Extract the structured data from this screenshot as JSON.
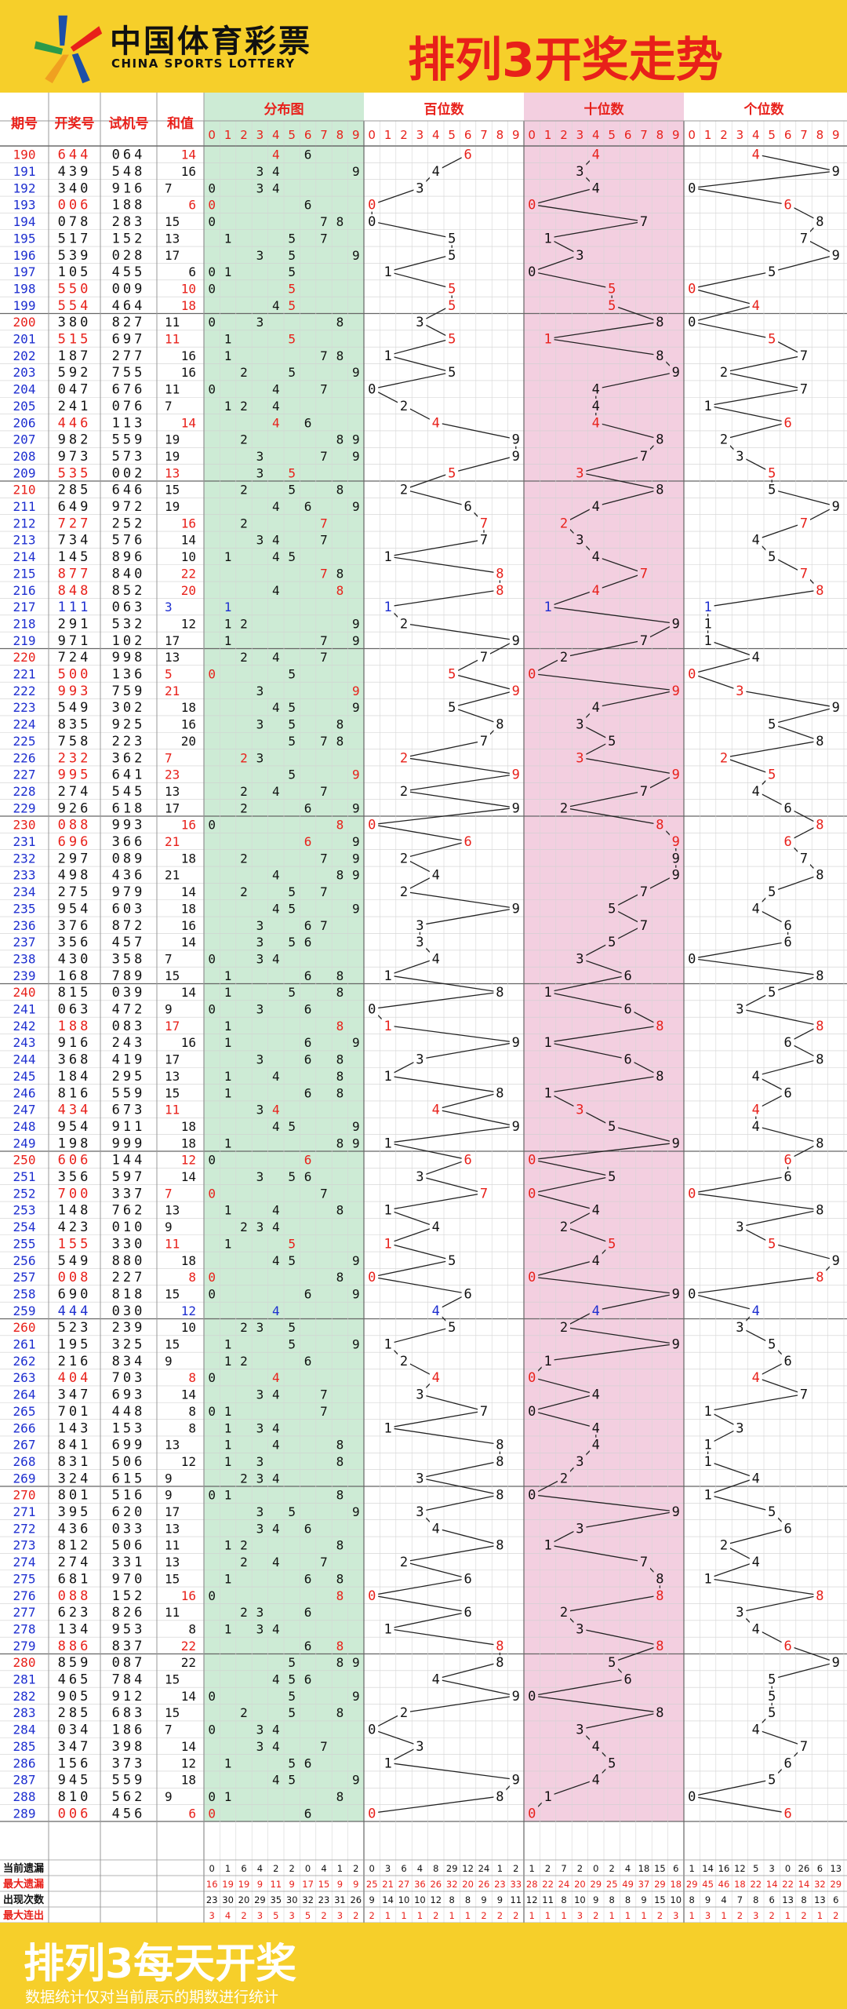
{
  "header": {
    "brand_cn": "中国体育彩票",
    "brand_en": "CHINA SPORTS LOTTERY",
    "title": "排列3开奖走势"
  },
  "footer": {
    "title": "排列3每天开奖",
    "note": "数据统计仅对当前展示的期数进行统计"
  },
  "colors": {
    "accent_red": "#e8201a",
    "blue": "#1e2fd0",
    "brand_yellow": "#f6cf2a",
    "dist_bg": "#cdebd5",
    "ten_bg": "#f3cfe0",
    "line": "#222222"
  },
  "chart_data": {
    "type": "table",
    "columns": [
      "期号",
      "开奖号",
      "试机号",
      "和值",
      "分布图",
      "百位数",
      "十位数",
      "个位数"
    ],
    "digits": [
      "0",
      "1",
      "2",
      "3",
      "4",
      "5",
      "6",
      "7",
      "8",
      "9"
    ],
    "rows": [
      [
        "190",
        "644",
        "064",
        14,
        "",
        ""
      ],
      [
        "191",
        "439",
        "548",
        16,
        "",
        ""
      ],
      [
        "192",
        "340",
        "916",
        7,
        "",
        ""
      ],
      [
        "193",
        "006",
        "188",
        6,
        "",
        ""
      ],
      [
        "194",
        "078",
        "283",
        15,
        "",
        ""
      ],
      [
        "195",
        "517",
        "152",
        13,
        "",
        ""
      ],
      [
        "196",
        "539",
        "028",
        17,
        "",
        ""
      ],
      [
        "197",
        "105",
        "455",
        6,
        "",
        ""
      ],
      [
        "198",
        "550",
        "009",
        10,
        "",
        ""
      ],
      [
        "199",
        "554",
        "464",
        18,
        "",
        ""
      ],
      [
        "200",
        "380",
        "827",
        11,
        "",
        ""
      ],
      [
        "201",
        "515",
        "697",
        11,
        "",
        ""
      ],
      [
        "202",
        "187",
        "277",
        16,
        "",
        ""
      ],
      [
        "203",
        "592",
        "755",
        16,
        "",
        ""
      ],
      [
        "204",
        "047",
        "676",
        11,
        "",
        ""
      ],
      [
        "205",
        "241",
        "076",
        7,
        "",
        ""
      ],
      [
        "206",
        "446",
        "113",
        14,
        "",
        ""
      ],
      [
        "207",
        "982",
        "559",
        19,
        "",
        ""
      ],
      [
        "208",
        "973",
        "573",
        19,
        "",
        ""
      ],
      [
        "209",
        "535",
        "002",
        13,
        "",
        ""
      ],
      [
        "210",
        "285",
        "646",
        15,
        "",
        ""
      ],
      [
        "211",
        "649",
        "972",
        19,
        "",
        ""
      ],
      [
        "212",
        "727",
        "252",
        16,
        "",
        ""
      ],
      [
        "213",
        "734",
        "576",
        14,
        "",
        ""
      ],
      [
        "214",
        "145",
        "896",
        10,
        "",
        ""
      ],
      [
        "215",
        "877",
        "840",
        22,
        "",
        ""
      ],
      [
        "216",
        "848",
        "852",
        20,
        "",
        ""
      ],
      [
        "217",
        "111",
        "063",
        3,
        "",
        ""
      ],
      [
        "218",
        "291",
        "532",
        12,
        "",
        ""
      ],
      [
        "219",
        "971",
        "102",
        17,
        "",
        ""
      ],
      [
        "220",
        "724",
        "998",
        13,
        "",
        ""
      ],
      [
        "221",
        "500",
        "136",
        5,
        "",
        ""
      ],
      [
        "222",
        "993",
        "759",
        21,
        "",
        ""
      ],
      [
        "223",
        "549",
        "302",
        18,
        "",
        ""
      ],
      [
        "224",
        "835",
        "925",
        16,
        "",
        ""
      ],
      [
        "225",
        "758",
        "223",
        20,
        "",
        ""
      ],
      [
        "226",
        "232",
        "362",
        7,
        "",
        ""
      ],
      [
        "227",
        "995",
        "641",
        23,
        "",
        ""
      ],
      [
        "228",
        "274",
        "545",
        13,
        "",
        ""
      ],
      [
        "229",
        "926",
        "618",
        17,
        "",
        ""
      ],
      [
        "230",
        "088",
        "993",
        16,
        "",
        ""
      ],
      [
        "231",
        "696",
        "366",
        21,
        "",
        ""
      ],
      [
        "232",
        "297",
        "089",
        18,
        "",
        ""
      ],
      [
        "233",
        "498",
        "436",
        21,
        "",
        ""
      ],
      [
        "234",
        "275",
        "979",
        14,
        "",
        ""
      ],
      [
        "235",
        "954",
        "603",
        18,
        "",
        ""
      ],
      [
        "236",
        "376",
        "872",
        16,
        "",
        ""
      ],
      [
        "237",
        "356",
        "457",
        14,
        "",
        ""
      ],
      [
        "238",
        "430",
        "358",
        7,
        "",
        ""
      ],
      [
        "239",
        "168",
        "789",
        15,
        "",
        ""
      ],
      [
        "240",
        "815",
        "039",
        14,
        "",
        ""
      ],
      [
        "241",
        "063",
        "472",
        9,
        "",
        ""
      ],
      [
        "242",
        "188",
        "083",
        17,
        "",
        ""
      ],
      [
        "243",
        "916",
        "243",
        16,
        "",
        ""
      ],
      [
        "244",
        "368",
        "419",
        17,
        "",
        ""
      ],
      [
        "245",
        "184",
        "295",
        13,
        "",
        ""
      ],
      [
        "246",
        "816",
        "559",
        15,
        "",
        ""
      ],
      [
        "247",
        "434",
        "673",
        11,
        "",
        ""
      ],
      [
        "248",
        "954",
        "911",
        18,
        "",
        ""
      ],
      [
        "249",
        "198",
        "999",
        18,
        "",
        ""
      ],
      [
        "250",
        "606",
        "144",
        12,
        "",
        ""
      ],
      [
        "251",
        "356",
        "597",
        14,
        "",
        ""
      ],
      [
        "252",
        "700",
        "337",
        7,
        "",
        ""
      ],
      [
        "253",
        "148",
        "762",
        13,
        "",
        ""
      ],
      [
        "254",
        "423",
        "010",
        9,
        "",
        ""
      ],
      [
        "255",
        "155",
        "330",
        11,
        "",
        ""
      ],
      [
        "256",
        "549",
        "880",
        18,
        "",
        ""
      ],
      [
        "257",
        "008",
        "227",
        8,
        "",
        ""
      ],
      [
        "258",
        "690",
        "818",
        15,
        "",
        ""
      ],
      [
        "259",
        "444",
        "030",
        12,
        "",
        ""
      ],
      [
        "260",
        "523",
        "239",
        10,
        "",
        ""
      ],
      [
        "261",
        "195",
        "325",
        15,
        "",
        ""
      ],
      [
        "262",
        "216",
        "834",
        9,
        "",
        ""
      ],
      [
        "263",
        "404",
        "703",
        8,
        "",
        ""
      ],
      [
        "264",
        "347",
        "693",
        14,
        "",
        ""
      ],
      [
        "265",
        "701",
        "448",
        8,
        "",
        ""
      ],
      [
        "266",
        "143",
        "153",
        8,
        "",
        ""
      ],
      [
        "267",
        "841",
        "699",
        13,
        "",
        ""
      ],
      [
        "268",
        "831",
        "506",
        12,
        "",
        ""
      ],
      [
        "269",
        "324",
        "615",
        9,
        "",
        ""
      ],
      [
        "270",
        "801",
        "516",
        9,
        "",
        ""
      ],
      [
        "271",
        "395",
        "620",
        17,
        "",
        ""
      ],
      [
        "272",
        "436",
        "033",
        13,
        "",
        ""
      ],
      [
        "273",
        "812",
        "506",
        11,
        "",
        ""
      ],
      [
        "274",
        "274",
        "331",
        13,
        "",
        ""
      ],
      [
        "275",
        "681",
        "970",
        15,
        "",
        ""
      ],
      [
        "276",
        "088",
        "152",
        16,
        "",
        ""
      ],
      [
        "277",
        "623",
        "826",
        11,
        "",
        ""
      ],
      [
        "278",
        "134",
        "953",
        8,
        "",
        ""
      ],
      [
        "279",
        "886",
        "837",
        22,
        "",
        ""
      ],
      [
        "280",
        "859",
        "087",
        22,
        "",
        ""
      ],
      [
        "281",
        "465",
        "784",
        15,
        "",
        ""
      ],
      [
        "282",
        "905",
        "912",
        14,
        "",
        ""
      ],
      [
        "283",
        "285",
        "683",
        15,
        "",
        ""
      ],
      [
        "284",
        "034",
        "186",
        7,
        "",
        ""
      ],
      [
        "285",
        "347",
        "398",
        14,
        "",
        ""
      ],
      [
        "286",
        "156",
        "373",
        12,
        "",
        ""
      ],
      [
        "287",
        "945",
        "559",
        18,
        "",
        ""
      ],
      [
        "288",
        "810",
        "562",
        9,
        "",
        ""
      ],
      [
        "289",
        "006",
        "456",
        6,
        "",
        ""
      ]
    ],
    "stats": [
      {
        "label": "当前遗漏",
        "color": "#111111",
        "values": [
          0,
          1,
          6,
          4,
          2,
          2,
          0,
          4,
          1,
          2,
          0,
          3,
          6,
          4,
          8,
          29,
          12,
          24,
          1,
          2,
          1,
          2,
          7,
          2,
          0,
          2,
          4,
          18,
          15,
          6,
          1,
          14,
          16,
          12,
          5,
          3,
          0,
          26,
          6,
          13
        ]
      },
      {
        "label": "最大遗漏",
        "color": "#e8201a",
        "values": [
          16,
          19,
          19,
          9,
          11,
          9,
          17,
          15,
          9,
          9,
          25,
          21,
          27,
          36,
          26,
          32,
          20,
          26,
          23,
          33,
          28,
          22,
          24,
          20,
          29,
          25,
          49,
          37,
          29,
          18,
          29,
          45,
          46,
          18,
          22,
          14,
          22,
          14,
          32,
          29
        ]
      },
      {
        "label": "出现次数",
        "color": "#111111",
        "values": [
          23,
          30,
          20,
          29,
          35,
          30,
          32,
          23,
          31,
          26,
          9,
          14,
          10,
          10,
          12,
          8,
          8,
          9,
          9,
          11,
          12,
          11,
          8,
          10,
          9,
          8,
          8,
          9,
          15,
          10,
          8,
          9,
          4,
          7,
          8,
          6,
          13,
          8,
          13,
          6
        ]
      },
      {
        "label": "最大连出",
        "color": "#e8201a",
        "values": [
          3,
          4,
          2,
          3,
          5,
          3,
          5,
          2,
          3,
          2,
          2,
          1,
          1,
          1,
          2,
          1,
          1,
          2,
          2,
          2,
          1,
          1,
          1,
          3,
          2,
          1,
          1,
          1,
          2,
          3,
          1,
          3,
          1,
          2,
          3,
          2,
          1,
          2,
          1,
          2
        ]
      }
    ]
  }
}
